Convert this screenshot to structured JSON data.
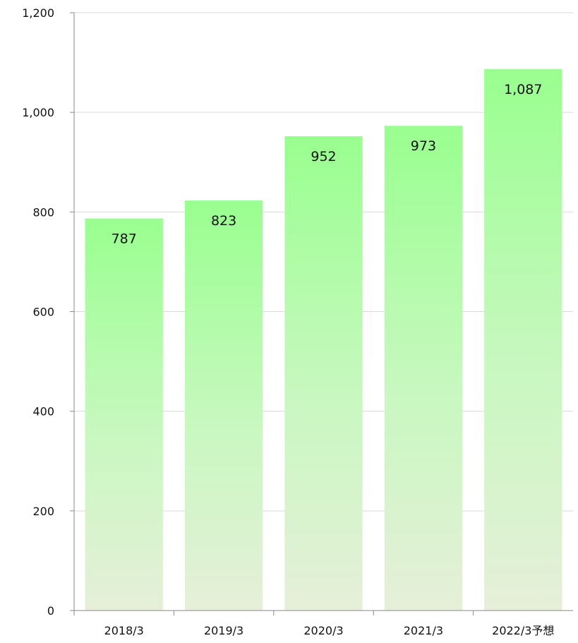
{
  "chart_data": {
    "type": "bar",
    "categories": [
      "2018/3",
      "2019/3",
      "2020/3",
      "2021/3",
      "2022/3予想"
    ],
    "values": [
      787,
      823,
      952,
      973,
      1087
    ],
    "data_labels": [
      "787",
      "823",
      "952",
      "973",
      "1,087"
    ],
    "ylim": [
      0,
      1200
    ],
    "yticks": [
      0,
      200,
      400,
      600,
      800,
      1000,
      1200
    ],
    "ytick_labels": [
      "0",
      "200",
      "400",
      "600",
      "800",
      "1,000",
      "1,200"
    ],
    "grid": true,
    "bar_gradient_top": "#99ff8f",
    "bar_gradient_bottom": "#e6efd9",
    "title": "",
    "xlabel": "",
    "ylabel": ""
  }
}
